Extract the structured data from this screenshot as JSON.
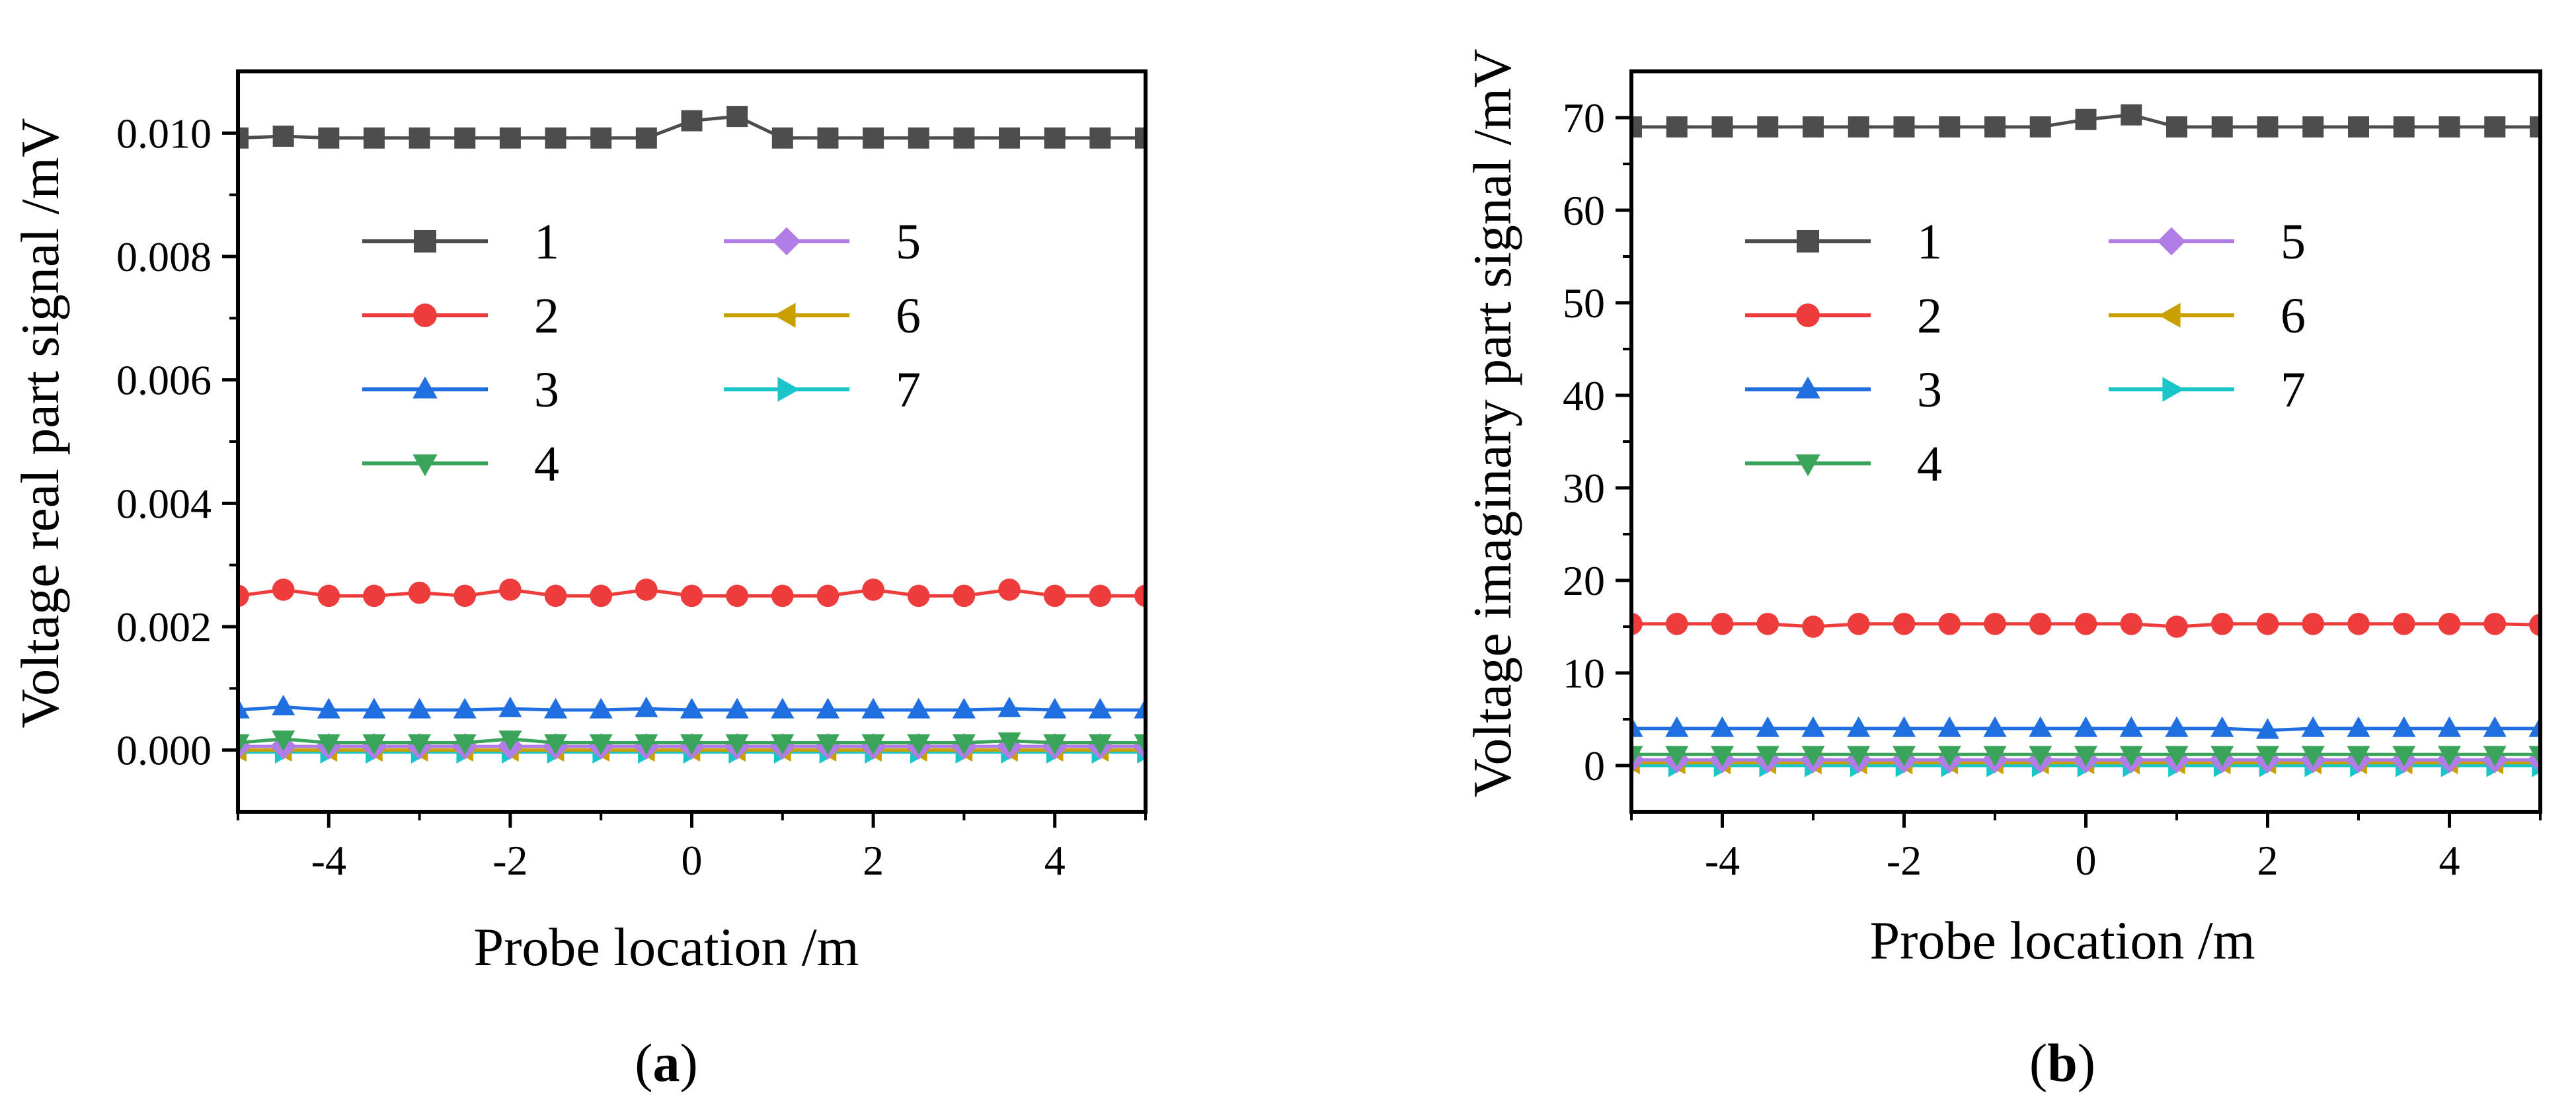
{
  "panels": [
    {
      "caption_letter": "a"
    },
    {
      "caption_letter": "b"
    }
  ],
  "colors": {
    "s1": "#4d4d4d",
    "s2": "#ee3b3b",
    "s3": "#1f6fe0",
    "s4": "#3aa55a",
    "s5": "#b07ce6",
    "s6": "#c9a000",
    "s7": "#18c6c9"
  },
  "chart_data": [
    {
      "type": "line",
      "title": "",
      "xlabel": "Probe location /m",
      "ylabel": "Voltage real part signal /mV",
      "xlim": [
        -5,
        5
      ],
      "ylim": [
        -0.001,
        0.011
      ],
      "xticks": [
        -4,
        -2,
        0,
        2,
        4
      ],
      "xticklabels": [
        "-4",
        "-2",
        "0",
        "2",
        "4"
      ],
      "yticks": [
        0.0,
        0.002,
        0.004,
        0.006,
        0.008,
        0.01
      ],
      "yticklabels": [
        "0.000",
        "0.002",
        "0.004",
        "0.006",
        "0.008",
        "0.010"
      ],
      "legend_placement": "upper-left inside, two columns",
      "x": [
        -5,
        -4.5,
        -4,
        -3.5,
        -3,
        -2.5,
        -2,
        -1.5,
        -1,
        -0.5,
        0,
        0.5,
        1,
        1.5,
        2,
        2.5,
        3,
        3.5,
        4,
        4.5,
        5
      ],
      "series": [
        {
          "name": "1",
          "marker": "square",
          "values": [
            0.00992,
            0.00995,
            0.00992,
            0.00992,
            0.00992,
            0.00992,
            0.00992,
            0.00992,
            0.00992,
            0.00992,
            0.0102,
            0.01027,
            0.00992,
            0.00992,
            0.00992,
            0.00992,
            0.00992,
            0.00992,
            0.00992,
            0.00992,
            0.00992
          ]
        },
        {
          "name": "2",
          "marker": "circle",
          "values": [
            0.0025,
            0.0026,
            0.0025,
            0.0025,
            0.00255,
            0.0025,
            0.0026,
            0.0025,
            0.0025,
            0.0026,
            0.0025,
            0.0025,
            0.0025,
            0.0025,
            0.0026,
            0.0025,
            0.0025,
            0.0026,
            0.0025,
            0.0025,
            0.0025
          ]
        },
        {
          "name": "3",
          "marker": "triangle-up",
          "values": [
            0.00065,
            0.0007,
            0.00065,
            0.00065,
            0.00065,
            0.00065,
            0.00067,
            0.00065,
            0.00065,
            0.00067,
            0.00065,
            0.00065,
            0.00065,
            0.00065,
            0.00065,
            0.00065,
            0.00065,
            0.00067,
            0.00065,
            0.00065,
            0.00065
          ]
        },
        {
          "name": "4",
          "marker": "triangle-down",
          "values": [
            0.00012,
            0.00018,
            0.00012,
            0.00012,
            0.00012,
            0.00012,
            0.00018,
            0.00012,
            0.00012,
            0.00012,
            0.00012,
            0.00012,
            0.00012,
            0.00012,
            0.00012,
            0.00012,
            0.00012,
            0.00015,
            0.00012,
            0.00012,
            0.00012
          ]
        },
        {
          "name": "5",
          "marker": "diamond",
          "values": [
            6e-05,
            6e-05,
            6e-05,
            6e-05,
            6e-05,
            6e-05,
            6e-05,
            6e-05,
            6e-05,
            6e-05,
            6e-05,
            6e-05,
            6e-05,
            6e-05,
            6e-05,
            6e-05,
            6e-05,
            6e-05,
            6e-05,
            6e-05,
            6e-05
          ]
        },
        {
          "name": "6",
          "marker": "triangle-left",
          "values": [
            0.0,
            0.0,
            0.0,
            0.0,
            0.0,
            0.0,
            0.0,
            0.0,
            0.0,
            0.0,
            0.0,
            0.0,
            0.0,
            0.0,
            0.0,
            0.0,
            0.0,
            0.0,
            0.0,
            0.0,
            0.0
          ]
        },
        {
          "name": "7",
          "marker": "triangle-right",
          "values": [
            -3e-05,
            -3e-05,
            -3e-05,
            -3e-05,
            -3e-05,
            -3e-05,
            -3e-05,
            -3e-05,
            -3e-05,
            -3e-05,
            -3e-05,
            -3e-05,
            -3e-05,
            -3e-05,
            -3e-05,
            -3e-05,
            -3e-05,
            -3e-05,
            -3e-05,
            -3e-05,
            -3e-05
          ]
        }
      ]
    },
    {
      "type": "line",
      "title": "",
      "xlabel": "Probe location /m",
      "ylabel": "Voltage imaginary part signal /mV",
      "xlim": [
        -5,
        5
      ],
      "ylim": [
        -5,
        75
      ],
      "xticks": [
        -4,
        -2,
        0,
        2,
        4
      ],
      "xticklabels": [
        "-4",
        "-2",
        "0",
        "2",
        "4"
      ],
      "yticks": [
        0,
        10,
        20,
        30,
        40,
        50,
        60,
        70
      ],
      "yticklabels": [
        "0",
        "10",
        "20",
        "30",
        "40",
        "50",
        "60",
        "70"
      ],
      "legend_placement": "upper-left inside, two columns",
      "x": [
        -5,
        -4.5,
        -4,
        -3.5,
        -3,
        -2.5,
        -2,
        -1.5,
        -1,
        -0.5,
        0,
        0.5,
        1,
        1.5,
        2,
        2.5,
        3,
        3.5,
        4,
        4.5,
        5
      ],
      "series": [
        {
          "name": "1",
          "marker": "square",
          "values": [
            69,
            69,
            69,
            69,
            69,
            69,
            69,
            69,
            69,
            69,
            69.8,
            70.3,
            69,
            69,
            69,
            69,
            69,
            69,
            69,
            69,
            69
          ]
        },
        {
          "name": "2",
          "marker": "circle",
          "values": [
            15.3,
            15.3,
            15.3,
            15.3,
            15.0,
            15.3,
            15.3,
            15.3,
            15.3,
            15.3,
            15.3,
            15.3,
            15.0,
            15.3,
            15.3,
            15.3,
            15.3,
            15.3,
            15.3,
            15.3,
            15.2
          ]
        },
        {
          "name": "3",
          "marker": "triangle-up",
          "values": [
            4,
            4,
            4,
            4,
            4,
            4,
            4,
            4,
            4,
            4,
            4,
            4,
            4,
            4,
            3.8,
            4,
            4,
            4,
            4,
            4,
            4
          ]
        },
        {
          "name": "4",
          "marker": "triangle-down",
          "values": [
            1.2,
            1.2,
            1.2,
            1.2,
            1.2,
            1.2,
            1.2,
            1.2,
            1.2,
            1.2,
            1.2,
            1.2,
            1.2,
            1.2,
            1.2,
            1.2,
            1.2,
            1.2,
            1.2,
            1.2,
            1.2
          ]
        },
        {
          "name": "5",
          "marker": "diamond",
          "values": [
            0.6,
            0.6,
            0.6,
            0.6,
            0.6,
            0.6,
            0.6,
            0.6,
            0.6,
            0.6,
            0.6,
            0.6,
            0.6,
            0.6,
            0.6,
            0.6,
            0.6,
            0.6,
            0.6,
            0.6,
            0.6
          ]
        },
        {
          "name": "6",
          "marker": "triangle-left",
          "values": [
            0.3,
            0.3,
            0.3,
            0.3,
            0.3,
            0.3,
            0.3,
            0.3,
            0.3,
            0.3,
            0.3,
            0.3,
            0.3,
            0.3,
            0.3,
            0.3,
            0.3,
            0.3,
            0.3,
            0.3,
            0.3
          ]
        },
        {
          "name": "7",
          "marker": "triangle-right",
          "values": [
            0.0,
            0.0,
            0.0,
            0.0,
            0.0,
            0.0,
            0.0,
            0.0,
            0.0,
            0.0,
            0.0,
            0.0,
            0.0,
            0.0,
            0.0,
            0.0,
            0.0,
            0.0,
            0.0,
            0.0,
            0.0
          ]
        }
      ]
    }
  ]
}
